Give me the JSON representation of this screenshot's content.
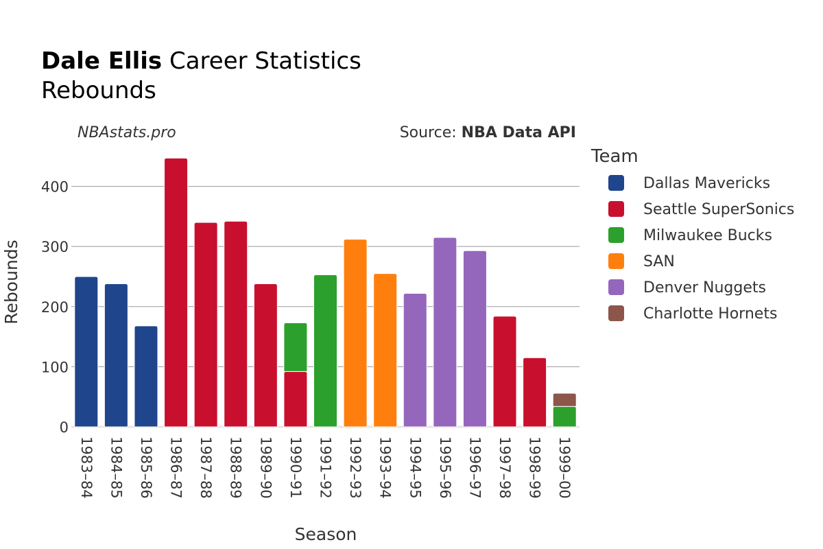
{
  "title": {
    "bold": "Dale Ellis",
    "rest": " Career Statistics",
    "subtitle": "Rebounds"
  },
  "annotations": {
    "watermark": "NBAstats.pro",
    "source_prefix": "Source: ",
    "source_bold": "NBA Data API"
  },
  "legend": {
    "title": "Team",
    "placement": "right"
  },
  "chart_data": {
    "type": "bar",
    "stacked": true,
    "xlabel": "Season",
    "ylabel": "Rebounds",
    "ylim": [
      0,
      460
    ],
    "yticks": [
      0,
      100,
      200,
      300,
      400
    ],
    "grid": true,
    "categories": [
      "1983–84",
      "1984–85",
      "1985–86",
      "1986–87",
      "1987–88",
      "1988–89",
      "1989–90",
      "1990–91",
      "1991–92",
      "1992–93",
      "1993–94",
      "1994–95",
      "1995–96",
      "1996–97",
      "1997–98",
      "1998–99",
      "1999–00"
    ],
    "series": [
      {
        "name": "Dallas Mavericks",
        "color": "#1f458c",
        "values": [
          250,
          238,
          168,
          0,
          0,
          0,
          0,
          0,
          0,
          0,
          0,
          0,
          0,
          0,
          0,
          0,
          0
        ]
      },
      {
        "name": "Seattle SuperSonics",
        "color": "#c8102e",
        "values": [
          0,
          0,
          0,
          447,
          340,
          342,
          238,
          92,
          0,
          0,
          0,
          0,
          0,
          0,
          184,
          115,
          0
        ]
      },
      {
        "name": "Milwaukee Bucks",
        "color": "#2ca02c",
        "values": [
          0,
          0,
          0,
          0,
          0,
          0,
          0,
          81,
          253,
          0,
          0,
          0,
          0,
          0,
          0,
          0,
          34
        ]
      },
      {
        "name": "SAN",
        "color": "#ff7f0e",
        "values": [
          0,
          0,
          0,
          0,
          0,
          0,
          0,
          0,
          0,
          312,
          255,
          0,
          0,
          0,
          0,
          0,
          0
        ]
      },
      {
        "name": "Denver Nuggets",
        "color": "#9467bd",
        "values": [
          0,
          0,
          0,
          0,
          0,
          0,
          0,
          0,
          0,
          0,
          0,
          222,
          315,
          293,
          0,
          0,
          0
        ]
      },
      {
        "name": "Charlotte Hornets",
        "color": "#8c564b",
        "values": [
          0,
          0,
          0,
          0,
          0,
          0,
          0,
          0,
          0,
          0,
          0,
          0,
          0,
          0,
          0,
          0,
          22
        ]
      }
    ]
  }
}
